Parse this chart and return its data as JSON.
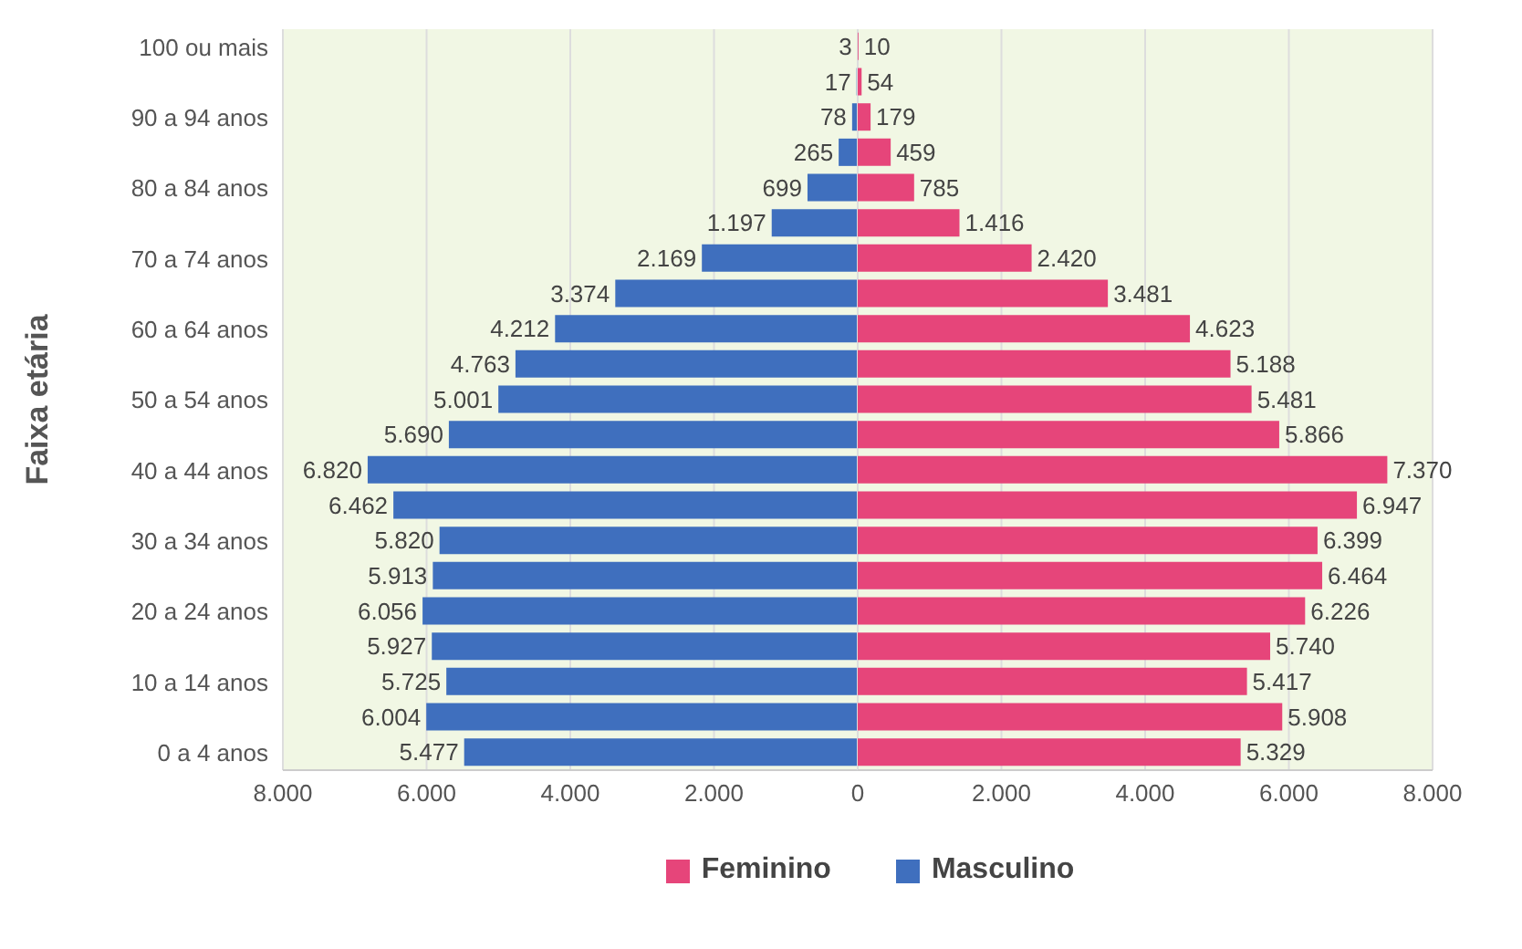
{
  "chart_data": [
    {
      "type": "bar",
      "orientation": "horizontal",
      "ylabel": "Faixa etária",
      "categories": [
        "100 ou mais",
        null,
        "90 a 94 anos",
        null,
        "80 a 84 anos",
        null,
        "70 a 74 anos",
        null,
        "60 a 64 anos",
        null,
        "50 a 54 anos",
        null,
        "40 a 44 anos",
        null,
        "30 a 34 anos",
        null,
        "20 a 24 anos",
        null,
        "10 a 14 anos",
        null,
        "0 a 4 anos"
      ],
      "series": [
        {
          "name": "Masculino",
          "color": "#3f6fbe",
          "values": [
            3,
            17,
            78,
            265,
            699,
            1197,
            2169,
            3374,
            4212,
            4763,
            5001,
            5690,
            6820,
            6462,
            5820,
            5913,
            6056,
            5927,
            5725,
            6004,
            5477
          ],
          "value_labels": [
            "3",
            "17",
            "78",
            "265",
            "699",
            "1.197",
            "2.169",
            "3.374",
            "4.212",
            "4.763",
            "5.001",
            "5.690",
            "6.820",
            "6.462",
            "5.820",
            "5.913",
            "6.056",
            "5.927",
            "5.725",
            "6.004",
            "5.477"
          ]
        }
      ],
      "xlim": [
        8000,
        0
      ],
      "xticks": [
        {
          "value": 8000,
          "label": "8.000"
        },
        {
          "value": 6000,
          "label": "6.000"
        },
        {
          "value": 4000,
          "label": "4.000"
        },
        {
          "value": 2000,
          "label": "2.000"
        },
        {
          "value": 0,
          "label": null
        }
      ],
      "grid": "x",
      "legend": "bottom"
    },
    {
      "type": "bar",
      "orientation": "horizontal",
      "tick_labels": "x",
      "categories": [
        null,
        null,
        null,
        null,
        null,
        null,
        null,
        null,
        null,
        null,
        null,
        null,
        null,
        null,
        null,
        null,
        null,
        null,
        null,
        null,
        null
      ],
      "series": [
        {
          "name": "Feminino",
          "color": "#e6457a",
          "values": [
            10,
            54,
            179,
            459,
            785,
            1416,
            2420,
            3481,
            4623,
            5188,
            5481,
            5866,
            7370,
            6947,
            6399,
            6464,
            6226,
            5740,
            5417,
            5908,
            5329
          ],
          "value_labels": [
            "10",
            "54",
            "179",
            "459",
            "785",
            "1.416",
            "2.420",
            "3.481",
            "4.623",
            "5.188",
            "5.481",
            "5.866",
            "7.370",
            "6.947",
            "6.399",
            "6.464",
            "6.226",
            "5.740",
            "5.417",
            "5.908",
            "5.329"
          ]
        }
      ],
      "xlim": [
        0,
        8000
      ],
      "xticks": [
        0,
        {
          "value": 2000,
          "label": "2.000"
        },
        {
          "value": 4000,
          "label": "4.000"
        },
        {
          "value": 6000,
          "label": "6.000"
        },
        {
          "value": 8000,
          "label": "8.000"
        }
      ],
      "grid": "x",
      "legend": "bottom"
    }
  ]
}
